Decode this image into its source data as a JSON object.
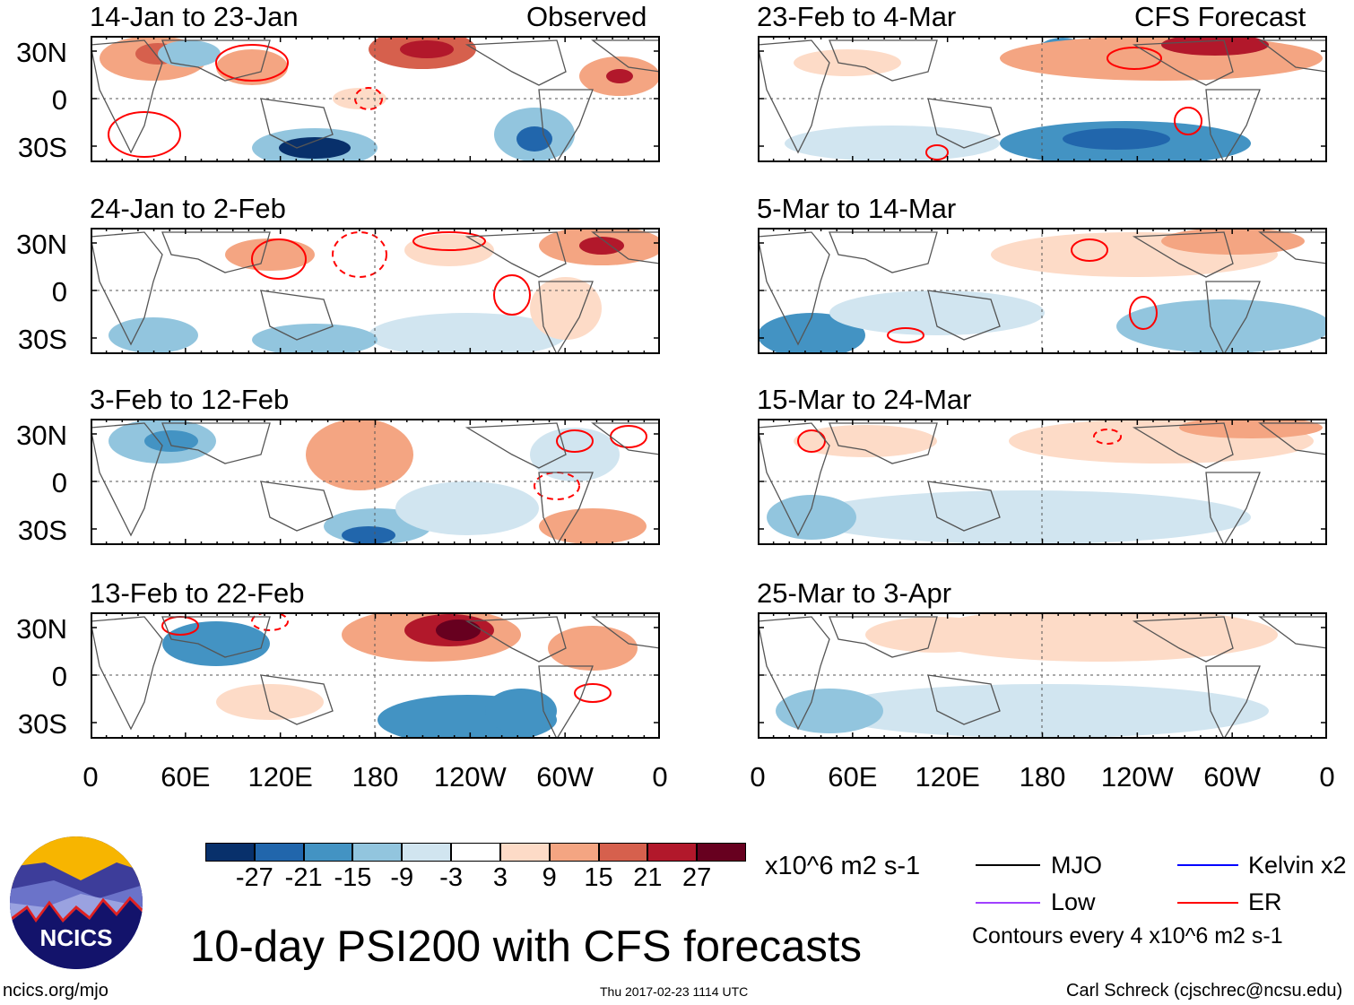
{
  "columns": [
    {
      "label": "Observed"
    },
    {
      "label": "CFS Forecast"
    }
  ],
  "panels": [
    {
      "title": "14-Jan to 23-Jan",
      "col": 0,
      "row": 0
    },
    {
      "title": "24-Jan to 2-Feb",
      "col": 0,
      "row": 1
    },
    {
      "title": "3-Feb to 12-Feb",
      "col": 0,
      "row": 2
    },
    {
      "title": "13-Feb to 22-Feb",
      "col": 0,
      "row": 3
    },
    {
      "title": "23-Feb to 4-Mar",
      "col": 1,
      "row": 0
    },
    {
      "title": "5-Mar to 14-Mar",
      "col": 1,
      "row": 1
    },
    {
      "title": "15-Mar to 24-Mar",
      "col": 1,
      "row": 2
    },
    {
      "title": "25-Mar to 3-Apr",
      "col": 1,
      "row": 3
    }
  ],
  "lat_labels": [
    "30N",
    "0",
    "30S"
  ],
  "lon_labels": [
    "0",
    "60E",
    "120E",
    "180",
    "120W",
    "60W",
    "0"
  ],
  "colorbar": {
    "colors": [
      "#08306b",
      "#2166ac",
      "#4393c3",
      "#92c5de",
      "#d1e5f0",
      "#ffffff",
      "#fddbc7",
      "#f4a582",
      "#d6604d",
      "#b2182b",
      "#67001f"
    ],
    "labels": [
      "-27",
      "-21",
      "-15",
      "-9",
      "-3",
      "3",
      "9",
      "15",
      "21",
      "27"
    ],
    "units": "x10^6 m2 s-1"
  },
  "legend": [
    {
      "label": "MJO",
      "color": "#000000"
    },
    {
      "label": "Kelvin x2",
      "color": "#0000ff"
    },
    {
      "label": "Low",
      "color": "#a040ff"
    },
    {
      "label": "ER",
      "color": "#ff0000"
    }
  ],
  "contour_note": "Contours every 4 x10^6 m2 s-1",
  "title": "10-day PSI200 with CFS forecasts",
  "logo": {
    "text": "NCICS"
  },
  "footer": {
    "url": "ncics.org/mjo",
    "timestamp": "Thu 2017-02-23 1114 UTC",
    "author": "Carl Schreck (cjschrec@ncsu.edu)"
  }
}
